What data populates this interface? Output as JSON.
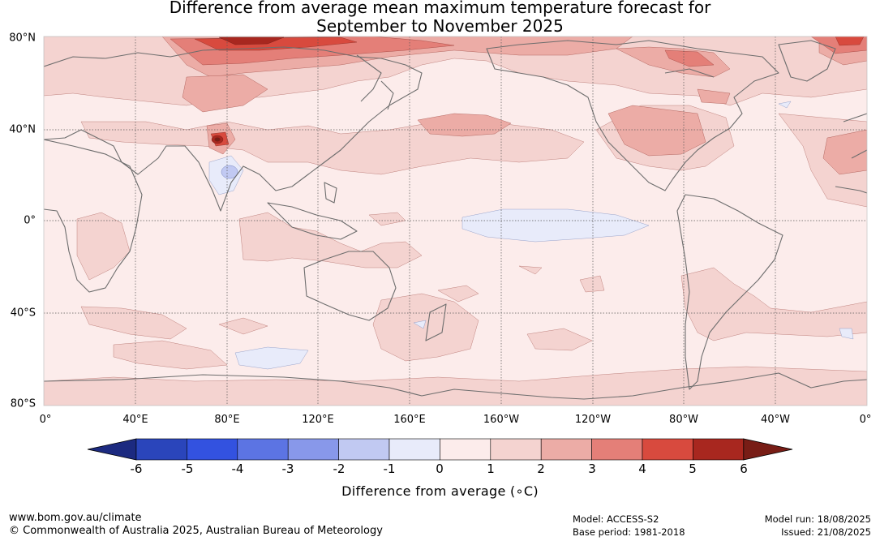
{
  "title": {
    "line1": "Difference from average mean maximum temperature forecast for",
    "line2": "September to November 2025"
  },
  "map": {
    "lon_labels": [
      "0°",
      "40°E",
      "80°E",
      "120°E",
      "160°E",
      "160°W",
      "120°W",
      "80°W",
      "40°W",
      "0°"
    ],
    "lat_labels": [
      "80°N",
      "40°N",
      "0°",
      "40°S",
      "80°S"
    ],
    "background_colour": "#fceceb"
  },
  "colorbar": {
    "ticks": [
      "-6",
      "-5",
      "-4",
      "-3",
      "-2",
      "-1",
      "0",
      "1",
      "2",
      "3",
      "4",
      "5",
      "6"
    ],
    "colours": [
      "#1c2a80",
      "#2a45bb",
      "#3352e0",
      "#5c74e3",
      "#8898ea",
      "#c1c9f2",
      "#e8ebfa",
      "#fceceb",
      "#f4d3d0",
      "#ecaca6",
      "#e47f78",
      "#d84a3e",
      "#a8271f",
      "#781d16"
    ],
    "label": "Difference from average (∘C)"
  },
  "footer": {
    "website": "www.bom.gov.au/climate",
    "copyright": "© Commonwealth of Australia 2025, Australian Bureau of Meteorology",
    "model": "Model: ACCESS-S2",
    "base_period": "Base period: 1981-2018",
    "model_run": "Model run: 18/08/2025",
    "issued": "Issued: 21/08/2025"
  }
}
